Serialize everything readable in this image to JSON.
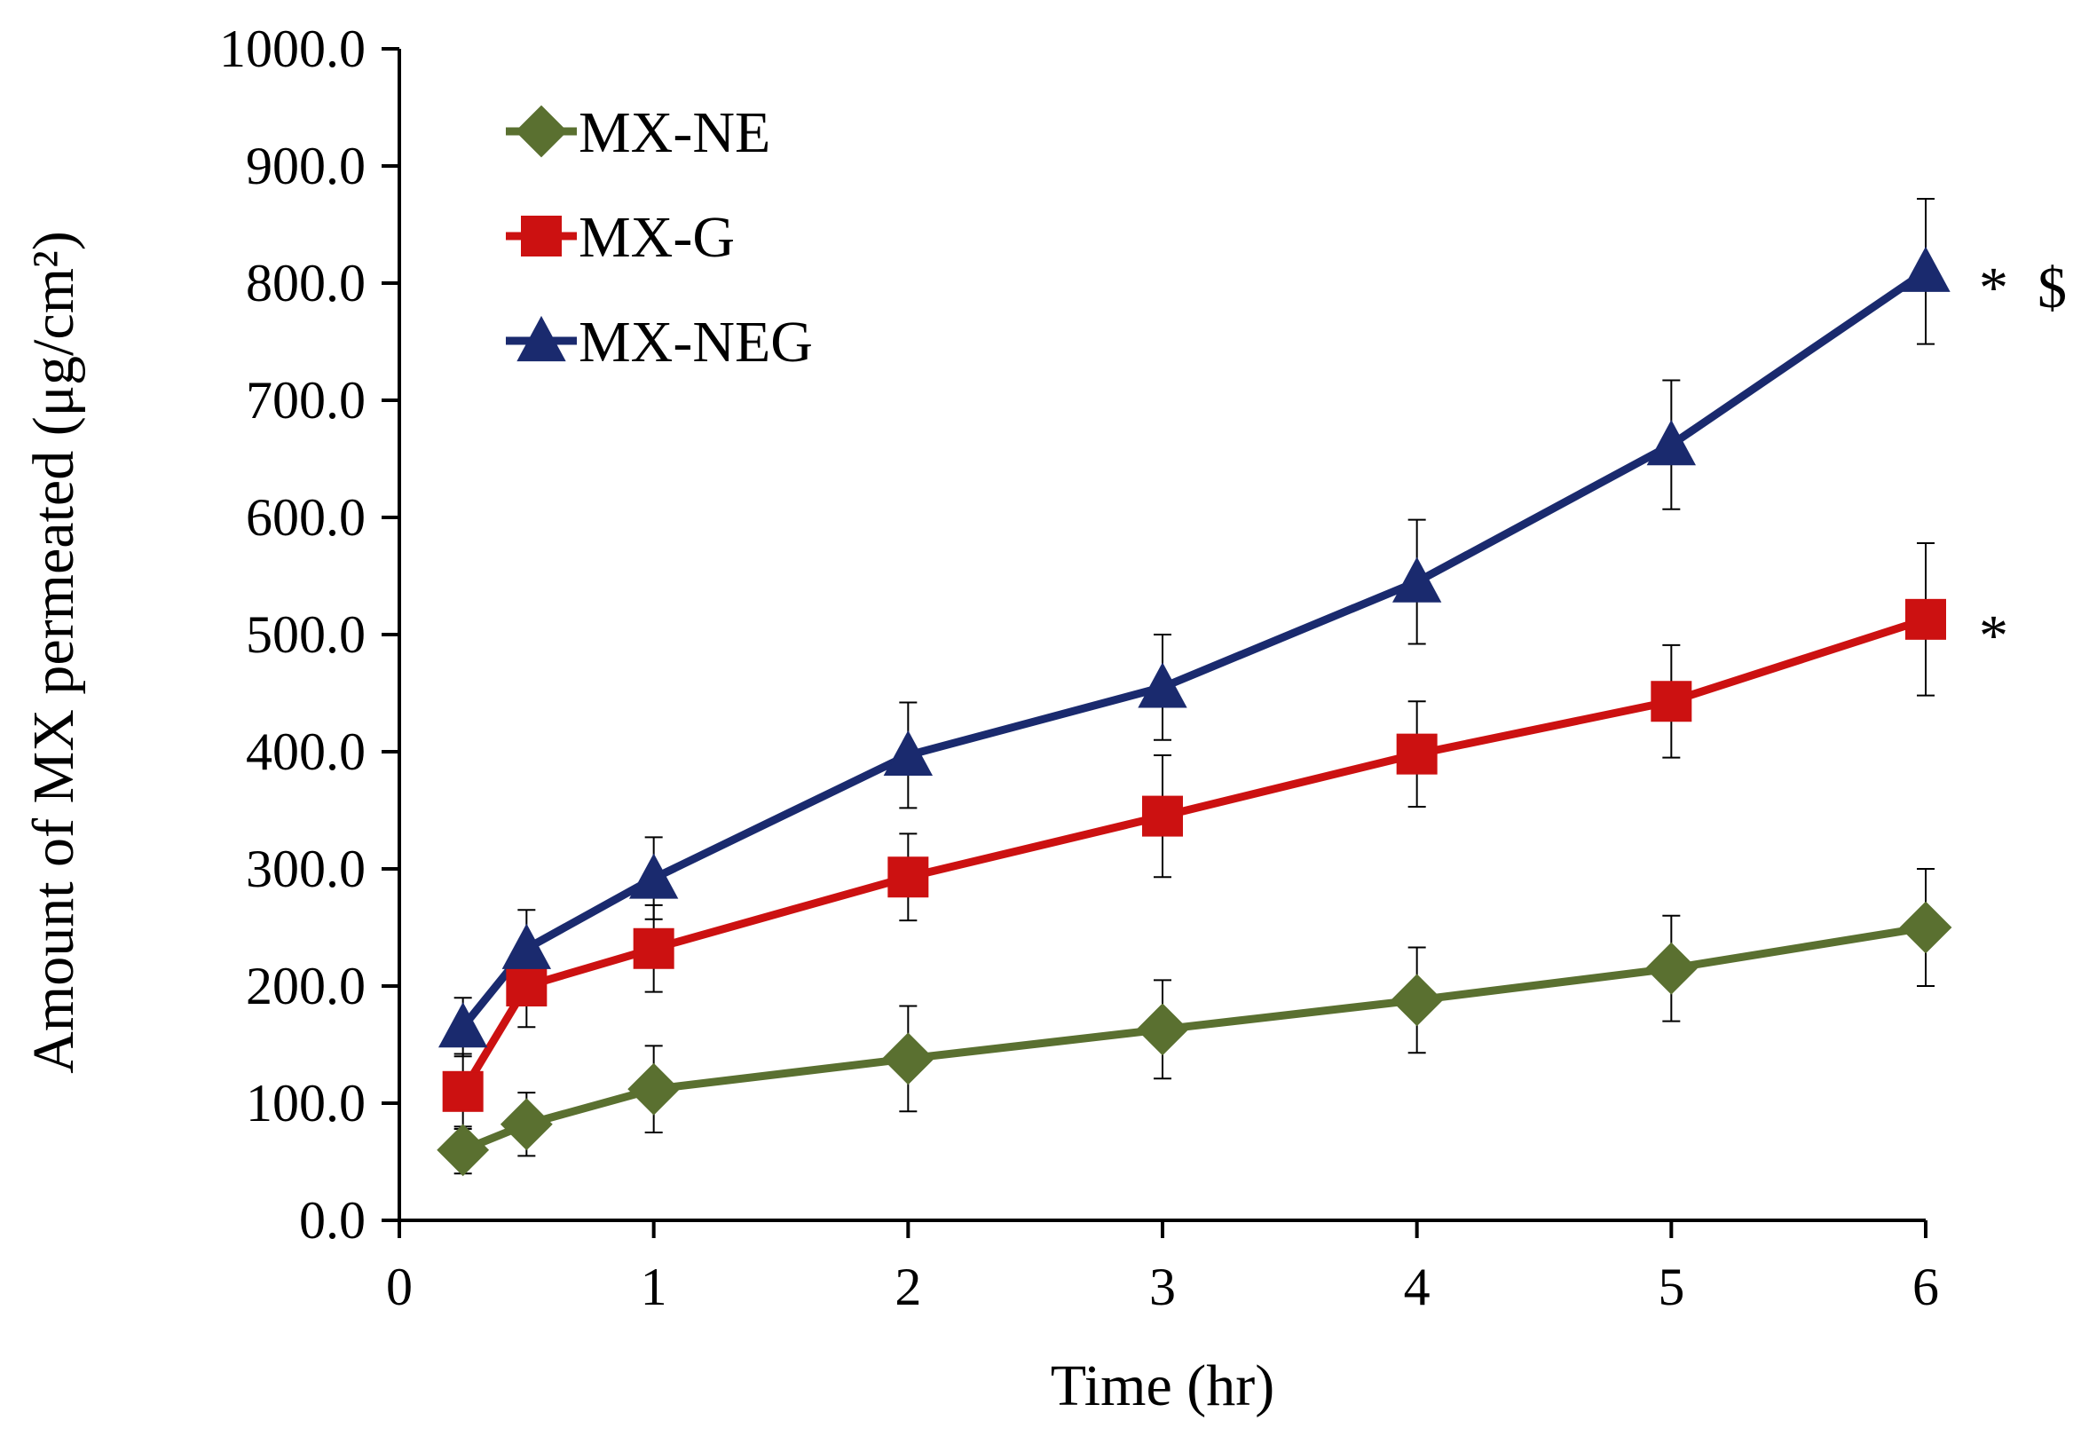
{
  "chart_data": {
    "type": "line",
    "xlabel": "Time (hr)",
    "ylabel": "Amount of MX permeated (μg/cm²)",
    "xlim": [
      0,
      6
    ],
    "ylim": [
      0,
      1000
    ],
    "x_ticks": [
      "0",
      "1",
      "2",
      "3",
      "4",
      "5",
      "6"
    ],
    "y_ticks": [
      "0.0",
      "100.0",
      "200.0",
      "300.0",
      "400.0",
      "500.0",
      "600.0",
      "700.0",
      "800.0",
      "900.0",
      "1000.0"
    ],
    "grid": false,
    "legend_position": "top-left",
    "x": [
      0.25,
      0.5,
      1,
      2,
      3,
      4,
      5,
      6
    ],
    "series": [
      {
        "name": "MX-NE",
        "color": "#5a7030",
        "marker": "diamond",
        "values": [
          60,
          82,
          112,
          138,
          163,
          188,
          215,
          250
        ],
        "errors": [
          20,
          27,
          37,
          45,
          42,
          45,
          45,
          50
        ]
      },
      {
        "name": "MX-G",
        "color": "#cc1111",
        "marker": "square",
        "values": [
          110,
          200,
          232,
          293,
          345,
          398,
          443,
          513
        ],
        "errors": [
          32,
          35,
          37,
          37,
          52,
          45,
          48,
          65
        ]
      },
      {
        "name": "MX-NEG",
        "color": "#1a2a6e",
        "marker": "triangle",
        "values": [
          165,
          232,
          292,
          397,
          455,
          545,
          662,
          810
        ],
        "errors": [
          25,
          33,
          35,
          45,
          45,
          53,
          55,
          62
        ]
      }
    ],
    "annotations": [
      {
        "text": "* $",
        "series": "MX-NEG",
        "point_index": 7
      },
      {
        "text": "*",
        "series": "MX-G",
        "point_index": 7
      }
    ]
  }
}
